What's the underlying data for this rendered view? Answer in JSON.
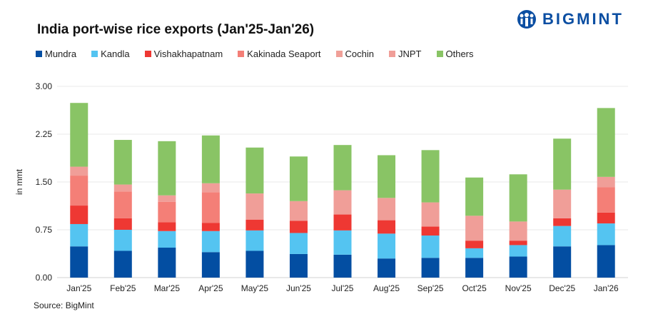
{
  "chart_data": {
    "type": "bar",
    "stacked": true,
    "title": "India port-wise rice exports (Jan'25-Jan'26)",
    "ylabel": "in mmt",
    "xlabel": "",
    "ylim": [
      0,
      3
    ],
    "yticks": [
      "0.00",
      "0.75",
      "1.50",
      "2.25",
      "3.00"
    ],
    "grid": true,
    "legend_position": "top",
    "categories": [
      "Jan'25",
      "Feb'25",
      "Mar'25",
      "Apr'25",
      "May'25",
      "Jun'25",
      "Jul'25",
      "Aug'25",
      "Sep'25",
      "Oct'25",
      "Nov'25",
      "Dec'25",
      "Jan'26"
    ],
    "series": [
      {
        "name": "Mundra",
        "color": "#034ea2",
        "values": [
          0.49,
          0.42,
          0.47,
          0.4,
          0.42,
          0.37,
          0.36,
          0.3,
          0.31,
          0.31,
          0.33,
          0.49,
          0.51
        ]
      },
      {
        "name": "Kandla",
        "color": "#54c4f1",
        "values": [
          0.35,
          0.33,
          0.26,
          0.33,
          0.32,
          0.33,
          0.38,
          0.39,
          0.35,
          0.15,
          0.18,
          0.32,
          0.34
        ]
      },
      {
        "name": "Vishakhapatnam",
        "color": "#ee3833",
        "values": [
          0.29,
          0.18,
          0.14,
          0.13,
          0.17,
          0.19,
          0.25,
          0.21,
          0.14,
          0.12,
          0.07,
          0.12,
          0.17
        ]
      },
      {
        "name": "Kakinada Seaport",
        "color": "#f47f77",
        "values": [
          0.47,
          0.42,
          0.32,
          0.48,
          0,
          0,
          0,
          0,
          0,
          0,
          0,
          0,
          0.4
        ]
      },
      {
        "name": "Cochin",
        "color": "#f0a098",
        "values": [
          0,
          0,
          0,
          0,
          0,
          0,
          0,
          0,
          0,
          0,
          0,
          0,
          0
        ]
      },
      {
        "name": "JNPT",
        "color": "#f09e98",
        "values": [
          0.14,
          0.11,
          0.1,
          0.14,
          0.41,
          0.31,
          0.38,
          0.35,
          0.38,
          0.39,
          0.3,
          0.45,
          0.16
        ]
      },
      {
        "name": "Others",
        "color": "#89c465",
        "values": [
          1.0,
          0.7,
          0.85,
          0.75,
          0.72,
          0.7,
          0.71,
          0.67,
          0.82,
          0.6,
          0.74,
          0.8,
          1.08
        ]
      }
    ]
  },
  "source": "Source: BigMint",
  "logo": {
    "text": "BIGMINT",
    "color": "#0b4ea2"
  }
}
